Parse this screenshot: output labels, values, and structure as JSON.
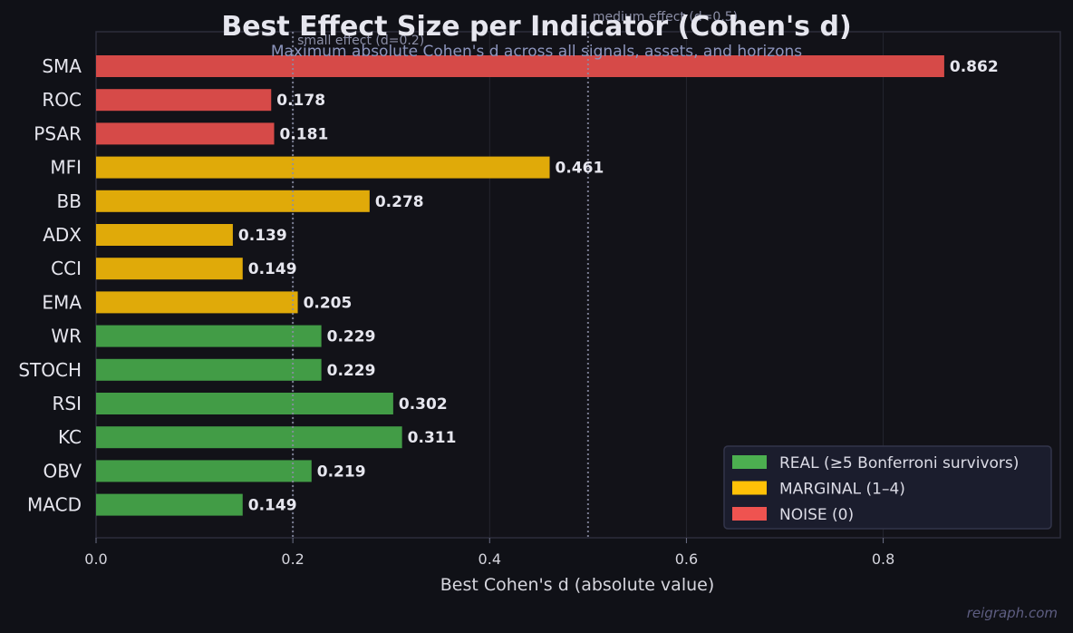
{
  "chart_data": {
    "type": "bar",
    "orientation": "horizontal",
    "title": "Best Effect Size per Indicator (Cohen's d)",
    "subtitle": "Maximum absolute Cohen's d across all signals, assets, and horizons",
    "xlabel": "Best Cohen's d (absolute value)",
    "ylabel": "",
    "xlim": [
      0,
      0.98
    ],
    "xticks": [
      0.0,
      0.2,
      0.4,
      0.6,
      0.8
    ],
    "xtick_labels": [
      "0.0",
      "0.2",
      "0.4",
      "0.6",
      "0.8"
    ],
    "grid": "vertical",
    "categories": [
      "SMA",
      "ROC",
      "PSAR",
      "MFI",
      "BB",
      "ADX",
      "CCI",
      "EMA",
      "WR",
      "STOCH",
      "RSI",
      "KC",
      "OBV",
      "MACD"
    ],
    "values": [
      0.862,
      0.178,
      0.181,
      0.461,
      0.278,
      0.139,
      0.149,
      0.205,
      0.229,
      0.229,
      0.302,
      0.311,
      0.219,
      0.149
    ],
    "value_labels": [
      "0.862",
      "0.178",
      "0.181",
      "0.461",
      "0.278",
      "0.139",
      "0.149",
      "0.205",
      "0.229",
      "0.229",
      "0.302",
      "0.311",
      "0.219",
      "0.149"
    ],
    "groups": [
      "noise",
      "noise",
      "noise",
      "marginal",
      "marginal",
      "marginal",
      "marginal",
      "marginal",
      "real",
      "real",
      "real",
      "real",
      "real",
      "real"
    ],
    "reference_lines": [
      {
        "x": 0.2,
        "label": "small effect (d=0.2)",
        "style": "dotted"
      },
      {
        "x": 0.5,
        "label": "medium effect (d=0.5)",
        "style": "dotted"
      }
    ],
    "legend": {
      "placement": "bottom-right",
      "entries": [
        {
          "key": "real",
          "label": "REAL (≥5 Bonferroni survivors)",
          "color": "#4caf50"
        },
        {
          "key": "marginal",
          "label": "MARGINAL (1–4)",
          "color": "#ffc107"
        },
        {
          "key": "noise",
          "label": "NOISE (0)",
          "color": "#ef5350"
        }
      ]
    },
    "bar_colors": {
      "real": "#429c46",
      "marginal": "#e0aa09",
      "noise": "#d64a48"
    }
  },
  "watermark": "reigraph.com",
  "colors": {
    "background": "#101117",
    "plot_background": "#121218",
    "frame": "#2c2d3b",
    "grid": "#24252f",
    "reference_line": "#8b8ea6",
    "legend_background": "#1b1d2d",
    "legend_border": "#33354a"
  }
}
